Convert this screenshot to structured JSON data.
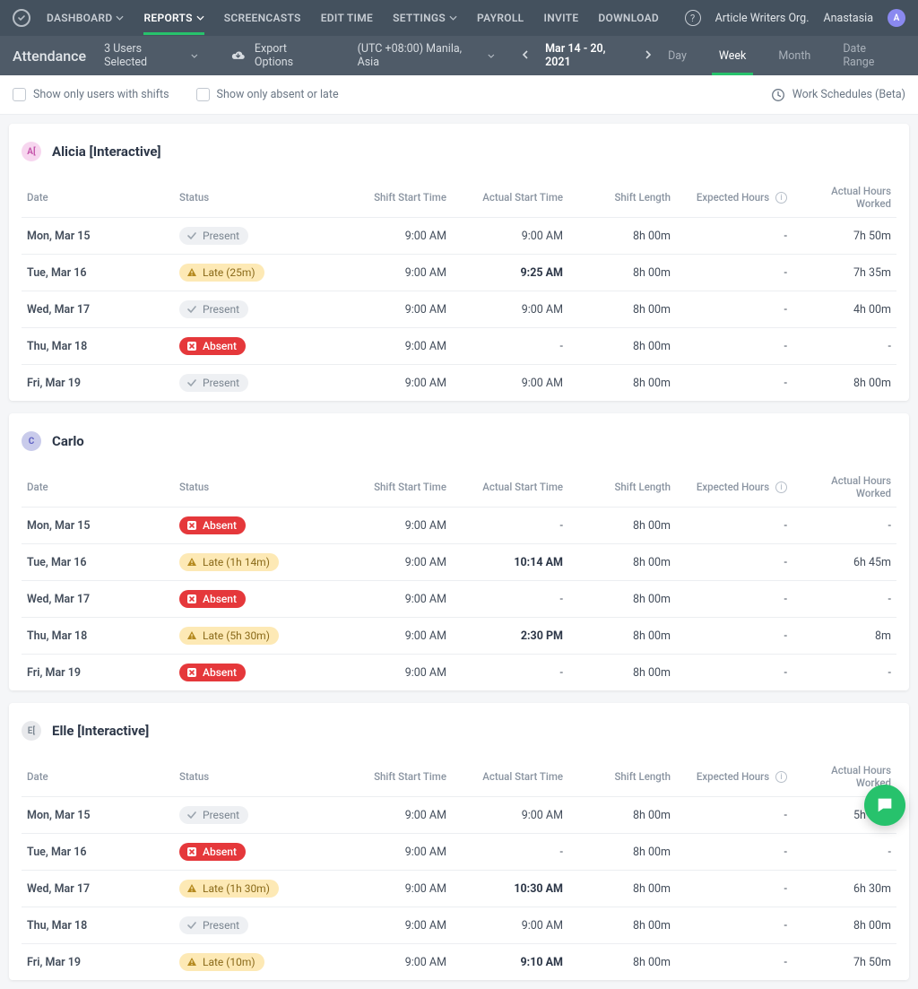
{
  "nav": {
    "items": [
      {
        "label": "DASHBOARD",
        "dropdown": true,
        "active": false
      },
      {
        "label": "REPORTS",
        "dropdown": true,
        "active": true
      },
      {
        "label": "SCREENCASTS",
        "dropdown": false,
        "active": false
      },
      {
        "label": "EDIT TIME",
        "dropdown": false,
        "active": false
      },
      {
        "label": "SETTINGS",
        "dropdown": true,
        "active": false
      },
      {
        "label": "PAYROLL",
        "dropdown": false,
        "active": false
      },
      {
        "label": "INVITE",
        "dropdown": false,
        "active": false
      },
      {
        "label": "DOWNLOAD",
        "dropdown": false,
        "active": false
      }
    ],
    "org": "Article Writers Org.",
    "user": "Anastasia",
    "user_initial": "A"
  },
  "subbar": {
    "page_title": "Attendance",
    "users_selected": "3 Users Selected",
    "export_label": "Export Options",
    "timezone": "(UTC +08:00) Manila, Asia",
    "date_range": "Mar 14 - 20, 2021",
    "tabs": [
      {
        "label": "Day",
        "active": false
      },
      {
        "label": "Week",
        "active": true
      },
      {
        "label": "Month",
        "active": false
      },
      {
        "label": "Date Range",
        "active": false
      }
    ]
  },
  "filters": {
    "only_shifts": "Show only users with shifts",
    "only_absent": "Show only absent or late",
    "work_schedules": "Work Schedules (Beta)"
  },
  "columns": {
    "date": "Date",
    "status": "Status",
    "shift_start": "Shift Start Time",
    "actual_start": "Actual Start Time",
    "shift_length": "Shift Length",
    "expected": "Expected Hours",
    "actual_worked": "Actual Hours Worked"
  },
  "status_styles": {
    "present": {
      "bg": "#eef0f3",
      "fg": "#7a8590"
    },
    "late": {
      "bg": "#fde9b5",
      "fg": "#8a6a1a"
    },
    "absent": {
      "bg": "#e5383b",
      "fg": "#ffffff"
    }
  },
  "avatar_colors": {
    "alicia": {
      "bg": "#f7d6ef",
      "fg": "#c24fa7"
    },
    "carlo": {
      "bg": "#c9cbeb",
      "fg": "#5a5cc2"
    },
    "elle": {
      "bg": "#e8e9ec",
      "fg": "#7a8590"
    }
  },
  "users": [
    {
      "key": "alicia",
      "name": "Alicia [Interactive]",
      "initial": "A[",
      "rows": [
        {
          "date": "Mon, Mar 15",
          "status": "present",
          "status_label": "Present",
          "shift_start": "9:00 AM",
          "actual_start": "9:00 AM",
          "actual_bold": false,
          "shift_length": "8h 00m",
          "expected": "-",
          "actual_worked": "7h 50m"
        },
        {
          "date": "Tue, Mar 16",
          "status": "late",
          "status_label": "Late (25m)",
          "shift_start": "9:00 AM",
          "actual_start": "9:25 AM",
          "actual_bold": true,
          "shift_length": "8h 00m",
          "expected": "-",
          "actual_worked": "7h 35m"
        },
        {
          "date": "Wed, Mar 17",
          "status": "present",
          "status_label": "Present",
          "shift_start": "9:00 AM",
          "actual_start": "9:00 AM",
          "actual_bold": false,
          "shift_length": "8h 00m",
          "expected": "-",
          "actual_worked": "4h 00m"
        },
        {
          "date": "Thu, Mar 18",
          "status": "absent",
          "status_label": "Absent",
          "shift_start": "9:00 AM",
          "actual_start": "-",
          "actual_bold": false,
          "shift_length": "8h 00m",
          "expected": "-",
          "actual_worked": "-"
        },
        {
          "date": "Fri, Mar 19",
          "status": "present",
          "status_label": "Present",
          "shift_start": "9:00 AM",
          "actual_start": "9:00 AM",
          "actual_bold": false,
          "shift_length": "8h 00m",
          "expected": "-",
          "actual_worked": "8h 00m"
        }
      ]
    },
    {
      "key": "carlo",
      "name": "Carlo",
      "initial": "C",
      "rows": [
        {
          "date": "Mon, Mar 15",
          "status": "absent",
          "status_label": "Absent",
          "shift_start": "9:00 AM",
          "actual_start": "-",
          "actual_bold": false,
          "shift_length": "8h 00m",
          "expected": "-",
          "actual_worked": "-"
        },
        {
          "date": "Tue, Mar 16",
          "status": "late",
          "status_label": "Late (1h 14m)",
          "shift_start": "9:00 AM",
          "actual_start": "10:14 AM",
          "actual_bold": true,
          "shift_length": "8h 00m",
          "expected": "-",
          "actual_worked": "6h 45m"
        },
        {
          "date": "Wed, Mar 17",
          "status": "absent",
          "status_label": "Absent",
          "shift_start": "9:00 AM",
          "actual_start": "-",
          "actual_bold": false,
          "shift_length": "8h 00m",
          "expected": "-",
          "actual_worked": "-"
        },
        {
          "date": "Thu, Mar 18",
          "status": "late",
          "status_label": "Late (5h 30m)",
          "shift_start": "9:00 AM",
          "actual_start": "2:30 PM",
          "actual_bold": true,
          "shift_length": "8h 00m",
          "expected": "-",
          "actual_worked": "8m"
        },
        {
          "date": "Fri, Mar 19",
          "status": "absent",
          "status_label": "Absent",
          "shift_start": "9:00 AM",
          "actual_start": "-",
          "actual_bold": false,
          "shift_length": "8h 00m",
          "expected": "-",
          "actual_worked": "-"
        }
      ]
    },
    {
      "key": "elle",
      "name": "Elle [Interactive]",
      "initial": "E[",
      "rows": [
        {
          "date": "Mon, Mar 15",
          "status": "present",
          "status_label": "Present",
          "shift_start": "9:00 AM",
          "actual_start": "9:00 AM",
          "actual_bold": false,
          "shift_length": "8h 00m",
          "expected": "-",
          "actual_worked": "5h 00m"
        },
        {
          "date": "Tue, Mar 16",
          "status": "absent",
          "status_label": "Absent",
          "shift_start": "9:00 AM",
          "actual_start": "-",
          "actual_bold": false,
          "shift_length": "8h 00m",
          "expected": "-",
          "actual_worked": "-"
        },
        {
          "date": "Wed, Mar 17",
          "status": "late",
          "status_label": "Late (1h 30m)",
          "shift_start": "9:00 AM",
          "actual_start": "10:30 AM",
          "actual_bold": true,
          "shift_length": "8h 00m",
          "expected": "-",
          "actual_worked": "6h 30m"
        },
        {
          "date": "Thu, Mar 18",
          "status": "present",
          "status_label": "Present",
          "shift_start": "9:00 AM",
          "actual_start": "9:00 AM",
          "actual_bold": false,
          "shift_length": "8h 00m",
          "expected": "-",
          "actual_worked": "8h 00m"
        },
        {
          "date": "Fri, Mar 19",
          "status": "late",
          "status_label": "Late (10m)",
          "shift_start": "9:00 AM",
          "actual_start": "9:10 AM",
          "actual_bold": true,
          "shift_length": "8h 00m",
          "expected": "-",
          "actual_worked": "7h 50m"
        }
      ]
    }
  ]
}
